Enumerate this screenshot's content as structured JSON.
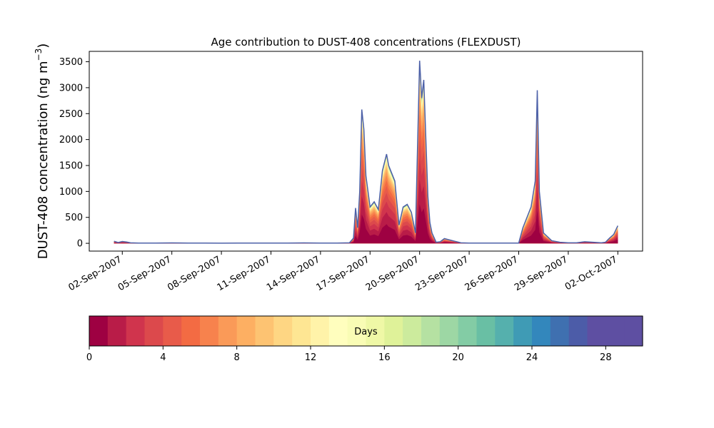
{
  "chart_data": {
    "type": "area",
    "title": "Age contribution to DUST-408 concentrations (FLEXDUST)",
    "ylabel_main": "DUST-408 concentration (ng m",
    "ylabel_unit_sup": "−3",
    "ylabel_close": ")",
    "xlabel": "",
    "ylim": [
      -150,
      3700
    ],
    "y_ticks": [
      0,
      500,
      1000,
      1500,
      2000,
      2500,
      3000,
      3500
    ],
    "y_tick_labels": [
      "0",
      "500",
      "1000",
      "1500",
      "2000",
      "2500",
      "3000",
      "3500"
    ],
    "x_range": [
      "2007-08-31T00:00",
      "2007-10-03T12:00"
    ],
    "x_ticks": [
      "2007-09-02",
      "2007-09-05",
      "2007-09-08",
      "2007-09-11",
      "2007-09-14",
      "2007-09-17",
      "2007-09-20",
      "2007-09-23",
      "2007-09-26",
      "2007-09-29",
      "2007-10-02"
    ],
    "x_tick_labels": [
      "02-Sep-2007",
      "05-Sep-2007",
      "08-Sep-2007",
      "11-Sep-2007",
      "14-Sep-2007",
      "17-Sep-2007",
      "20-Sep-2007",
      "23-Sep-2007",
      "26-Sep-2007",
      "29-Sep-2007",
      "02-Oct-2007"
    ],
    "total_series": {
      "x": [
        "2007-09-01T12:00",
        "2007-09-01T18:00",
        "2007-09-02T00:00",
        "2007-09-02T06:00",
        "2007-09-02T12:00",
        "2007-09-03T00:00",
        "2007-09-04T00:00",
        "2007-09-05T00:00",
        "2007-09-06T00:00",
        "2007-09-07T00:00",
        "2007-09-08T00:00",
        "2007-09-09T00:00",
        "2007-09-10T00:00",
        "2007-09-11T00:00",
        "2007-09-12T00:00",
        "2007-09-13T00:00",
        "2007-09-14T00:00",
        "2007-09-15T00:00",
        "2007-09-15T18:00",
        "2007-09-16T00:00",
        "2007-09-16T03:00",
        "2007-09-16T06:00",
        "2007-09-16T09:00",
        "2007-09-16T12:00",
        "2007-09-16T15:00",
        "2007-09-16T18:00",
        "2007-09-17T00:00",
        "2007-09-17T06:00",
        "2007-09-17T12:00",
        "2007-09-17T18:00",
        "2007-09-18T00:00",
        "2007-09-18T03:00",
        "2007-09-18T06:00",
        "2007-09-18T12:00",
        "2007-09-18T18:00",
        "2007-09-19T00:00",
        "2007-09-19T06:00",
        "2007-09-19T12:00",
        "2007-09-19T18:00",
        "2007-09-20T00:00",
        "2007-09-20T03:00",
        "2007-09-20T06:00",
        "2007-09-20T12:00",
        "2007-09-20T15:00",
        "2007-09-20T18:00",
        "2007-09-21T00:00",
        "2007-09-21T06:00",
        "2007-09-21T12:00",
        "2007-09-22T00:00",
        "2007-09-22T12:00",
        "2007-09-23T00:00",
        "2007-09-24T00:00",
        "2007-09-25T00:00",
        "2007-09-25T12:00",
        "2007-09-26T00:00",
        "2007-09-26T06:00",
        "2007-09-26T12:00",
        "2007-09-26T18:00",
        "2007-09-27T00:00",
        "2007-09-27T03:00",
        "2007-09-27T06:00",
        "2007-09-27T12:00",
        "2007-09-28T00:00",
        "2007-09-28T12:00",
        "2007-09-29T00:00",
        "2007-09-29T12:00",
        "2007-09-30T00:00",
        "2007-09-30T12:00",
        "2007-10-01T00:00",
        "2007-10-01T06:00",
        "2007-10-01T12:00",
        "2007-10-01T18:00",
        "2007-10-02T00:00"
      ],
      "y": [
        40,
        15,
        35,
        25,
        10,
        5,
        5,
        8,
        5,
        5,
        3,
        5,
        5,
        5,
        5,
        8,
        5,
        5,
        10,
        100,
        680,
        300,
        1000,
        2580,
        2200,
        1300,
        700,
        800,
        650,
        1400,
        1720,
        1500,
        1400,
        1200,
        350,
        700,
        750,
        600,
        200,
        3520,
        2800,
        3150,
        900,
        400,
        200,
        20,
        30,
        90,
        50,
        10,
        5,
        5,
        5,
        5,
        5,
        300,
        500,
        700,
        1200,
        2950,
        1000,
        200,
        50,
        20,
        10,
        10,
        30,
        20,
        10,
        20,
        100,
        170,
        340
      ]
    },
    "age_share_fractions": [
      0.22,
      0.14,
      0.12,
      0.1,
      0.08,
      0.065,
      0.055,
      0.045,
      0.04,
      0.03,
      0.025,
      0.02,
      0.015,
      0.012,
      0.01,
      0.008,
      0.007,
      0.006,
      0.005,
      0.004,
      0.004,
      0.003,
      0.003,
      0.002,
      0.002,
      0.002,
      0.001,
      0.001,
      0.001,
      0.001
    ],
    "colorbar": {
      "label": "Days",
      "range": [
        0,
        30
      ],
      "ticks": [
        0,
        4,
        8,
        12,
        16,
        20,
        24,
        28
      ],
      "tick_labels": [
        "0",
        "4",
        "8",
        "12",
        "16",
        "20",
        "24",
        "28"
      ],
      "colors": [
        "#9e0142",
        "#b91c48",
        "#d0344d",
        "#dc494c",
        "#e85b4a",
        "#f36b43",
        "#f7824d",
        "#fa9a58",
        "#fdaf62",
        "#fdc372",
        "#fed683",
        "#fee693",
        "#fff3a9",
        "#fffebe",
        "#f9fcb5",
        "#eff8a6",
        "#dff299",
        "#cceb9d",
        "#b5e1a2",
        "#9dd7a4",
        "#83cca5",
        "#69bfa4",
        "#55b0ad",
        "#3f9bb5",
        "#3387bc",
        "#3f70b0",
        "#4c5ca8",
        "#5e4fa2",
        "#5e4fa2",
        "#5e4fa2"
      ]
    },
    "colors": {
      "total_line": "#4c60a8",
      "grid": "off",
      "legend": "colorbar-bottom"
    }
  }
}
